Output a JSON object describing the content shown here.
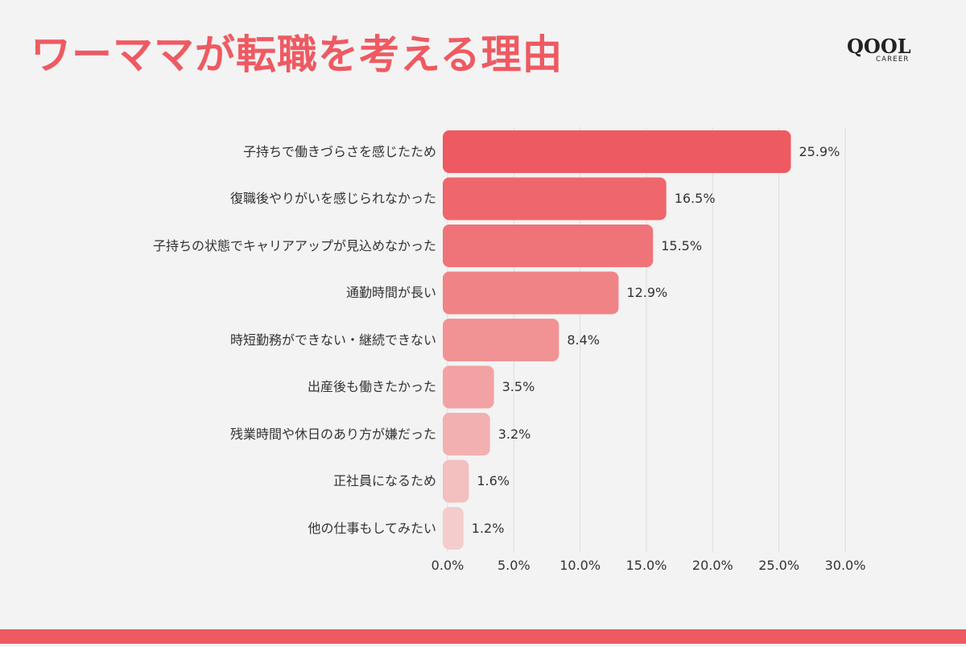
{
  "title": "ワーママが転職を考える理由",
  "logo": {
    "main": "QOOL",
    "sub": "CAREER"
  },
  "colors": {
    "accent": "#ee5a62",
    "bars": [
      "#ee5a62",
      "#ef666d",
      "#ef7479",
      "#f08386",
      "#f19395",
      "#f2a2a4",
      "#f3b0b1",
      "#f3bfbf",
      "#f4cccc"
    ],
    "grid": "#dddddd",
    "background": "#f3f3f3"
  },
  "chart_data": {
    "type": "bar",
    "orientation": "horizontal",
    "categories": [
      "子持ちで働きづらさを感じたため",
      "復職後やりがいを感じられなかった",
      "子持ちの状態でキャリアアップが見込めなかった",
      "通勤時間が長い",
      "時短勤務ができない・継続できない",
      "出産後も働きたかった",
      "残業時間や休日のあり方が嫌だった",
      "正社員になるため",
      "他の仕事もしてみたい"
    ],
    "values": [
      25.9,
      16.5,
      15.5,
      12.9,
      8.4,
      3.5,
      3.2,
      1.6,
      1.2
    ],
    "value_labels": [
      "25.9%",
      "16.5%",
      "15.5%",
      "12.9%",
      "8.4%",
      "3.5%",
      "3.2%",
      "1.6%",
      "1.2%"
    ],
    "xlim": [
      0,
      30
    ],
    "xticks": [
      "0.0%",
      "5.0%",
      "10.0%",
      "15.0%",
      "20.0%",
      "25.0%",
      "30.0%"
    ],
    "grid": true
  }
}
